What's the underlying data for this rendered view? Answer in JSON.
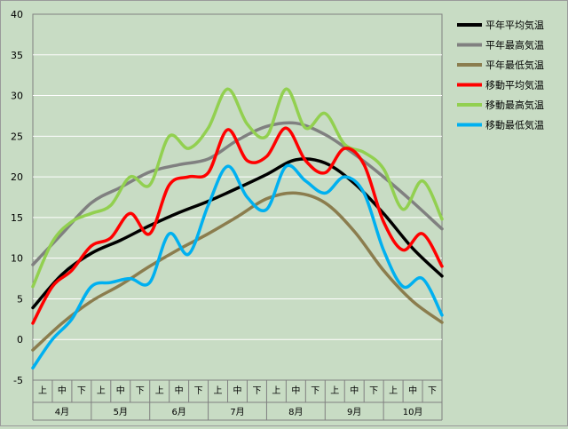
{
  "chart_data": {
    "type": "line",
    "title": "",
    "xlabel": "",
    "ylabel": "",
    "ylim": [
      -5,
      40
    ],
    "yticks": [
      -5,
      0,
      5,
      10,
      15,
      20,
      25,
      30,
      35,
      40
    ],
    "grid": true,
    "legend_position": "right",
    "colors": {
      "plot_bg": "#c8dcc4",
      "gridline": "#ffffff"
    },
    "months": [
      "4月",
      "5月",
      "6月",
      "7月",
      "8月",
      "9月",
      "10月"
    ],
    "dekads": [
      "上",
      "中",
      "下"
    ],
    "x_unit": "half-dekad index (0 = start of 4月上, 42 = end of 10月下)",
    "series": [
      {
        "name": "平年平均気温",
        "color": "#000000",
        "x": [
          0,
          3,
          6,
          9,
          12,
          15,
          18,
          21,
          24,
          27,
          30,
          33,
          36,
          39,
          42
        ],
        "values": [
          3.9,
          8.0,
          10.6,
          12.2,
          14.0,
          15.6,
          17.0,
          18.6,
          20.3,
          22.1,
          21.7,
          19.2,
          15.5,
          11.2,
          7.8
        ]
      },
      {
        "name": "平年最高気温",
        "color": "#808080",
        "x": [
          0,
          3,
          6,
          9,
          12,
          15,
          18,
          21,
          24,
          27,
          30,
          33,
          36,
          39,
          42
        ],
        "values": [
          9.2,
          13.0,
          16.8,
          18.7,
          20.6,
          21.5,
          22.2,
          24.5,
          26.2,
          26.6,
          25.2,
          22.8,
          20.0,
          16.9,
          13.6
        ]
      },
      {
        "name": "平年最低気温",
        "color": "#8b7d4e",
        "x": [
          0,
          3,
          6,
          9,
          12,
          15,
          18,
          21,
          24,
          27,
          30,
          33,
          36,
          39,
          42
        ],
        "values": [
          -1.3,
          2.0,
          4.7,
          6.7,
          9.0,
          11.1,
          13.0,
          15.1,
          17.3,
          18.0,
          16.8,
          13.3,
          8.5,
          4.7,
          2.1
        ]
      },
      {
        "name": "移動平均気温",
        "color": "#ff0000",
        "x": [
          0,
          2,
          4,
          6,
          8,
          10,
          12,
          14,
          16,
          18,
          20,
          22,
          24,
          26,
          28,
          30,
          32,
          34,
          36,
          38,
          40,
          42
        ],
        "values": [
          2.0,
          6.5,
          8.5,
          11.5,
          12.5,
          15.5,
          13.0,
          19.0,
          20.0,
          20.5,
          25.8,
          22.0,
          22.5,
          26.0,
          22.0,
          20.5,
          23.5,
          21.5,
          14.5,
          11.0,
          13.0,
          9.0
        ]
      },
      {
        "name": "移動最高気温",
        "color": "#92d050",
        "x": [
          0,
          2,
          4,
          6,
          8,
          10,
          12,
          14,
          16,
          18,
          20,
          22,
          24,
          26,
          28,
          30,
          32,
          34,
          36,
          38,
          40,
          42
        ],
        "values": [
          6.5,
          12.0,
          14.5,
          15.5,
          16.5,
          20.0,
          19.0,
          25.0,
          23.5,
          26.0,
          30.8,
          26.5,
          25.0,
          30.8,
          26.0,
          27.8,
          24.0,
          23.0,
          21.0,
          16.0,
          19.5,
          14.8
        ]
      },
      {
        "name": "移動最低気温",
        "color": "#00b0f0",
        "x": [
          0,
          2,
          4,
          6,
          8,
          10,
          12,
          14,
          16,
          18,
          20,
          22,
          24,
          26,
          28,
          30,
          32,
          34,
          36,
          38,
          40,
          42
        ],
        "values": [
          -3.5,
          0.0,
          2.5,
          6.5,
          7.0,
          7.5,
          7.0,
          13.0,
          10.5,
          16.5,
          21.3,
          17.5,
          16.0,
          21.3,
          19.5,
          18.0,
          20.0,
          18.0,
          11.0,
          6.5,
          7.5,
          3.0
        ]
      }
    ]
  }
}
